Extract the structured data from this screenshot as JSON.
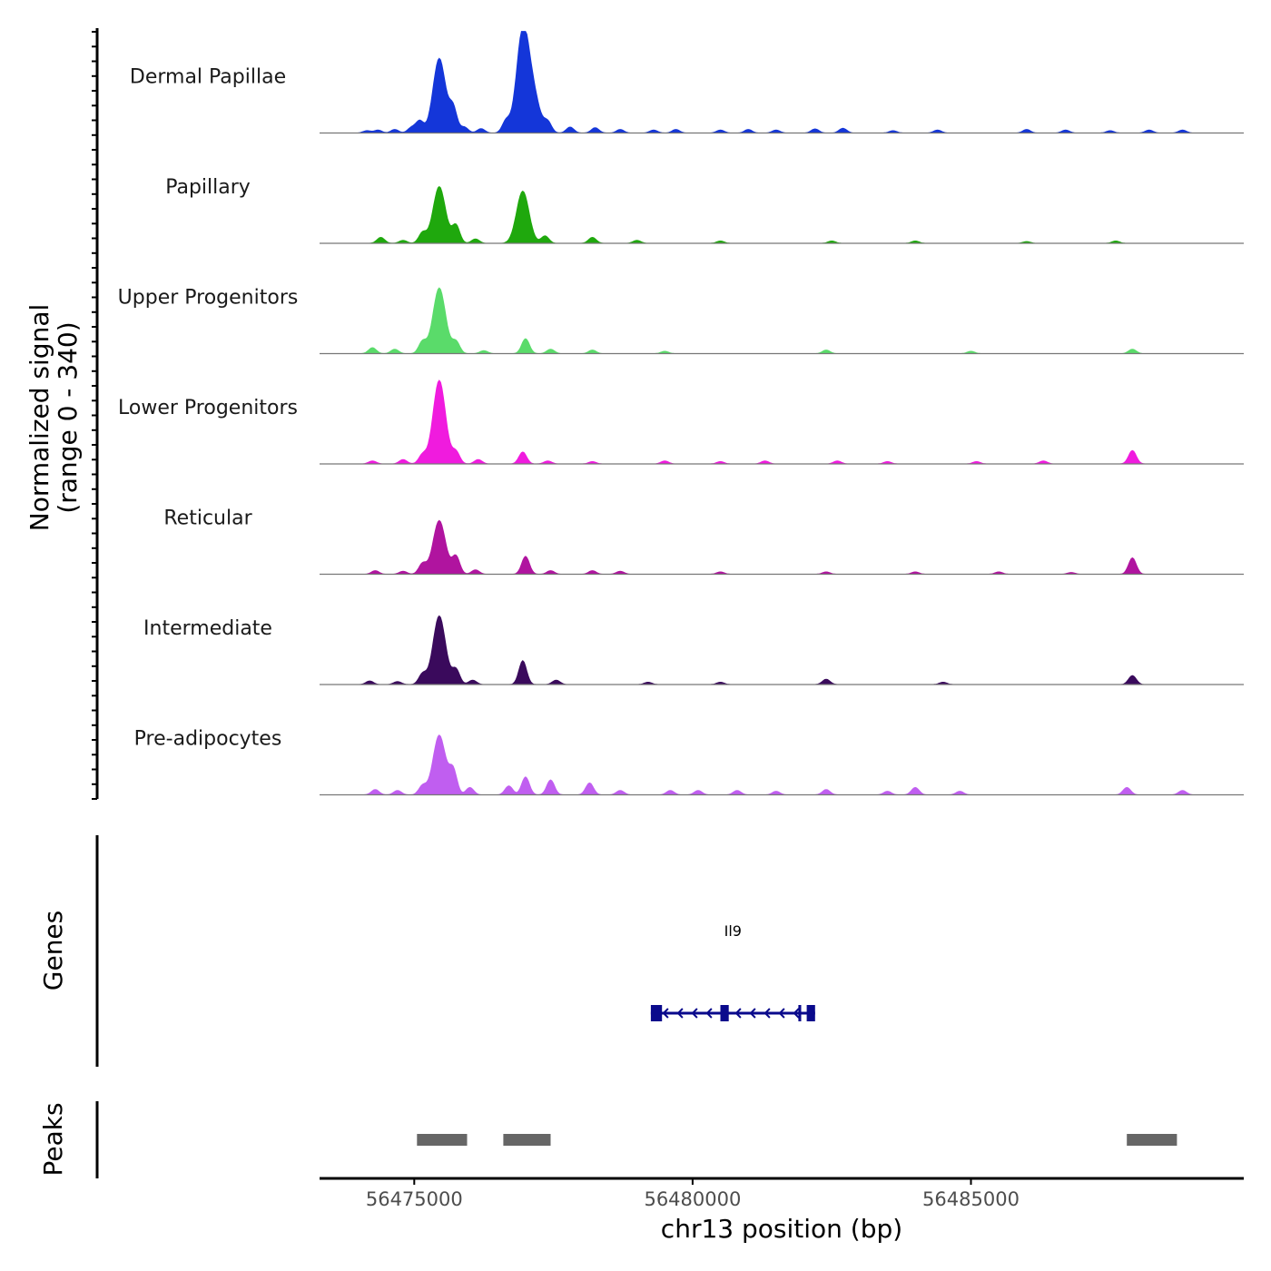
{
  "chart_data": {
    "type": "area",
    "chromosome": "chr13",
    "signal_axis_title_line1": "Normalized signal",
    "signal_axis_title_line2": "(range 0 - 340)",
    "signal_range": [
      0,
      340
    ],
    "genes_axis_title": "Genes",
    "peaks_axis_title": "Peaks",
    "xlabel": "chr13 position (bp)",
    "xlim": [
      56473300,
      56489900
    ],
    "xticks": [
      56475000,
      56480000,
      56485000
    ],
    "xtick_labels": [
      "56475000",
      "56480000",
      "56485000"
    ],
    "tracks": [
      {
        "name": "Dermal Papillae",
        "color": "#1436d9",
        "peaks": [
          [
            56474150,
            8
          ],
          [
            56474350,
            10
          ],
          [
            56474650,
            12
          ],
          [
            56474950,
            18
          ],
          [
            56475100,
            40
          ],
          [
            56475450,
            250
          ],
          [
            56475700,
            80
          ],
          [
            56475900,
            20
          ],
          [
            56476200,
            15
          ],
          [
            56476650,
            40
          ],
          [
            56476950,
            340
          ],
          [
            56477150,
            110
          ],
          [
            56477400,
            35
          ],
          [
            56477800,
            20
          ],
          [
            56478250,
            18
          ],
          [
            56478700,
            12
          ],
          [
            56479300,
            10
          ],
          [
            56479700,
            12
          ],
          [
            56480500,
            10
          ],
          [
            56481000,
            12
          ],
          [
            56481500,
            10
          ],
          [
            56482200,
            14
          ],
          [
            56482700,
            16
          ],
          [
            56483600,
            8
          ],
          [
            56484400,
            10
          ],
          [
            56486000,
            12
          ],
          [
            56486700,
            10
          ],
          [
            56487500,
            8
          ],
          [
            56488200,
            10
          ],
          [
            56488800,
            10
          ]
        ]
      },
      {
        "name": "Papillary",
        "color": "#1fa80d",
        "peaks": [
          [
            56474400,
            20
          ],
          [
            56474800,
            10
          ],
          [
            56475150,
            35
          ],
          [
            56475450,
            190
          ],
          [
            56475750,
            60
          ],
          [
            56476100,
            15
          ],
          [
            56476950,
            175
          ],
          [
            56477350,
            25
          ],
          [
            56478200,
            20
          ],
          [
            56479000,
            10
          ],
          [
            56480500,
            8
          ],
          [
            56482500,
            8
          ],
          [
            56484000,
            8
          ],
          [
            56486000,
            6
          ],
          [
            56487600,
            8
          ]
        ]
      },
      {
        "name": "Upper Progenitors",
        "color": "#5adb6a",
        "peaks": [
          [
            56474250,
            20
          ],
          [
            56474650,
            15
          ],
          [
            56475150,
            40
          ],
          [
            56475450,
            220
          ],
          [
            56475750,
            40
          ],
          [
            56476250,
            10
          ],
          [
            56477000,
            50
          ],
          [
            56477450,
            15
          ],
          [
            56478200,
            12
          ],
          [
            56479500,
            8
          ],
          [
            56482400,
            12
          ],
          [
            56485000,
            8
          ],
          [
            56487900,
            15
          ]
        ]
      },
      {
        "name": "Lower Progenitors",
        "color": "#f01bde",
        "peaks": [
          [
            56474250,
            10
          ],
          [
            56474800,
            15
          ],
          [
            56475150,
            30
          ],
          [
            56475450,
            280
          ],
          [
            56475750,
            40
          ],
          [
            56476150,
            15
          ],
          [
            56476950,
            40
          ],
          [
            56477400,
            10
          ],
          [
            56478200,
            8
          ],
          [
            56479500,
            10
          ],
          [
            56480500,
            8
          ],
          [
            56481300,
            10
          ],
          [
            56482600,
            10
          ],
          [
            56483500,
            8
          ],
          [
            56485100,
            8
          ],
          [
            56486300,
            10
          ],
          [
            56487900,
            45
          ]
        ]
      },
      {
        "name": "Reticular",
        "color": "#b0149f",
        "peaks": [
          [
            56474300,
            12
          ],
          [
            56474800,
            10
          ],
          [
            56475150,
            35
          ],
          [
            56475450,
            180
          ],
          [
            56475750,
            60
          ],
          [
            56476100,
            15
          ],
          [
            56477000,
            60
          ],
          [
            56477450,
            12
          ],
          [
            56478200,
            12
          ],
          [
            56478700,
            10
          ],
          [
            56480500,
            8
          ],
          [
            56482400,
            8
          ],
          [
            56484000,
            8
          ],
          [
            56485500,
            8
          ],
          [
            56486800,
            6
          ],
          [
            56487900,
            55
          ]
        ]
      },
      {
        "name": "Intermediate",
        "color": "#3a0a5c",
        "peaks": [
          [
            56474200,
            12
          ],
          [
            56474700,
            10
          ],
          [
            56475150,
            35
          ],
          [
            56475450,
            230
          ],
          [
            56475750,
            50
          ],
          [
            56476050,
            15
          ],
          [
            56476950,
            80
          ],
          [
            56477550,
            15
          ],
          [
            56479200,
            8
          ],
          [
            56480500,
            8
          ],
          [
            56482400,
            18
          ],
          [
            56484500,
            8
          ],
          [
            56487900,
            30
          ]
        ]
      },
      {
        "name": "Pre-adipocytes",
        "color": "#c05ef0",
        "peaks": [
          [
            56474300,
            18
          ],
          [
            56474700,
            15
          ],
          [
            56475150,
            30
          ],
          [
            56475450,
            200
          ],
          [
            56475700,
            80
          ],
          [
            56476000,
            25
          ],
          [
            56476700,
            30
          ],
          [
            56477000,
            60
          ],
          [
            56477450,
            50
          ],
          [
            56478150,
            40
          ],
          [
            56478700,
            15
          ],
          [
            56479600,
            15
          ],
          [
            56480100,
            15
          ],
          [
            56480800,
            15
          ],
          [
            56481500,
            12
          ],
          [
            56482400,
            18
          ],
          [
            56483500,
            12
          ],
          [
            56484000,
            25
          ],
          [
            56484800,
            12
          ],
          [
            56487800,
            25
          ],
          [
            56488800,
            15
          ]
        ]
      }
    ],
    "genes": [
      {
        "name": "Il9",
        "strand": "-",
        "start": 56479250,
        "end": 56482200,
        "exons": [
          [
            56479250,
            56479450
          ],
          [
            56480500,
            56480650
          ],
          [
            56481900,
            56481950
          ],
          [
            56482050,
            56482200
          ]
        ]
      }
    ],
    "peaks_track": [
      [
        56475050,
        56475950
      ],
      [
        56476600,
        56477450
      ],
      [
        56487800,
        56488700
      ]
    ]
  }
}
